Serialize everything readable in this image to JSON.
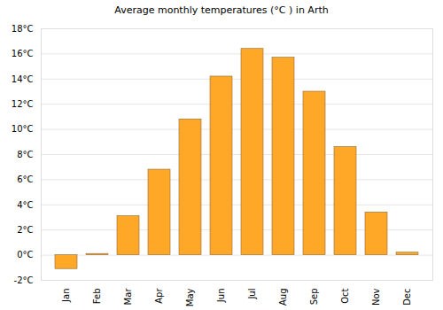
{
  "chart_data": {
    "type": "bar",
    "title": "Average monthly temperatures (°C ) in Arth",
    "categories": [
      "Jan",
      "Feb",
      "Mar",
      "Apr",
      "May",
      "Jun",
      "Jul",
      "Aug",
      "Sep",
      "Oct",
      "Nov",
      "Dec"
    ],
    "values": [
      -1.1,
      0.1,
      3.1,
      6.8,
      10.8,
      14.2,
      16.4,
      15.7,
      13.0,
      8.6,
      3.4,
      0.2
    ],
    "color": "#ffa726",
    "ylim": [
      -2,
      18
    ],
    "yticks": [
      {
        "value": -2,
        "label": "-2°C"
      },
      {
        "value": 0,
        "label": "0°C"
      },
      {
        "value": 2,
        "label": "2°C"
      },
      {
        "value": 4,
        "label": "4°C"
      },
      {
        "value": 6,
        "label": "6°C"
      },
      {
        "value": 8,
        "label": "8°C"
      },
      {
        "value": 10,
        "label": "10°C"
      },
      {
        "value": 12,
        "label": "12°C"
      },
      {
        "value": 14,
        "label": "14°C"
      },
      {
        "value": 16,
        "label": "16°C"
      },
      {
        "value": 18,
        "label": "18°C"
      }
    ],
    "grid": true
  }
}
